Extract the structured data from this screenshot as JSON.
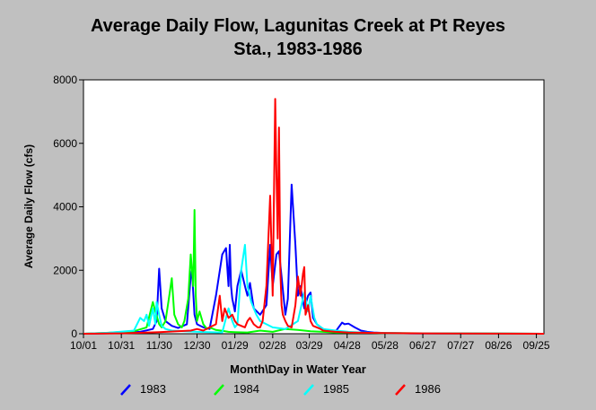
{
  "chart_data": {
    "type": "line",
    "title_line1": "Average Daily Flow, Lagunitas Creek at Pt Reyes",
    "title_line2": "Sta., 1983-1986",
    "xlabel": "Month\\Day in Water Year",
    "ylabel": "Average Daily Flow (cfs)",
    "ylim": [
      0,
      8000
    ],
    "xlim": [
      0,
      365
    ],
    "y_ticks": [
      "0",
      "2000",
      "4000",
      "6000",
      "8000"
    ],
    "x_ticks": [
      {
        "label": "10/01",
        "day": 0
      },
      {
        "label": "10/31",
        "day": 30
      },
      {
        "label": "11/30",
        "day": 60
      },
      {
        "label": "12/30",
        "day": 90
      },
      {
        "label": "01/29",
        "day": 120
      },
      {
        "label": "02/28",
        "day": 150
      },
      {
        "label": "03/29",
        "day": 179
      },
      {
        "label": "04/28",
        "day": 209
      },
      {
        "label": "05/28",
        "day": 239
      },
      {
        "label": "06/27",
        "day": 269
      },
      {
        "label": "07/27",
        "day": 299
      },
      {
        "label": "08/26",
        "day": 329
      },
      {
        "label": "09/25",
        "day": 359
      }
    ],
    "series": [
      {
        "name": "1983",
        "color": "#0000ff",
        "x": [
          0,
          30,
          45,
          55,
          58,
          60,
          62,
          65,
          70,
          75,
          82,
          85,
          86,
          88,
          90,
          95,
          100,
          105,
          110,
          113,
          115,
          116,
          117,
          118,
          119,
          120,
          122,
          125,
          128,
          130,
          132,
          135,
          140,
          145,
          148,
          150,
          153,
          155,
          157,
          160,
          162,
          165,
          168,
          170,
          172,
          175,
          178,
          180,
          182,
          185,
          190,
          195,
          200,
          205,
          207,
          210,
          215,
          220,
          225,
          230,
          240,
          260,
          300,
          365
        ],
        "y": [
          0,
          20,
          60,
          150,
          400,
          2050,
          800,
          400,
          250,
          180,
          300,
          1800,
          2000,
          600,
          300,
          200,
          150,
          1200,
          2500,
          2700,
          1500,
          2800,
          1500,
          1100,
          900,
          700,
          1500,
          2000,
          1500,
          1200,
          1600,
          800,
          600,
          900,
          2800,
          1500,
          2500,
          2600,
          1800,
          600,
          1100,
          4700,
          2800,
          1200,
          1500,
          800,
          1200,
          1300,
          500,
          300,
          150,
          100,
          80,
          350,
          300,
          320,
          200,
          100,
          60,
          40,
          20,
          10,
          5,
          0
        ]
      },
      {
        "name": "1984",
        "color": "#00ff00",
        "x": [
          0,
          20,
          40,
          50,
          55,
          57,
          60,
          62,
          65,
          68,
          70,
          72,
          75,
          78,
          80,
          83,
          85,
          87,
          88,
          89,
          90,
          92,
          95,
          98,
          100,
          105,
          110,
          115,
          120,
          130,
          140,
          150,
          160,
          170,
          180,
          190,
          200,
          220,
          240,
          270,
          300,
          330,
          365
        ],
        "y": [
          0,
          30,
          80,
          200,
          1000,
          700,
          300,
          200,
          400,
          1200,
          1750,
          600,
          300,
          200,
          400,
          1100,
          2500,
          1500,
          3900,
          1200,
          400,
          700,
          300,
          150,
          200,
          120,
          90,
          60,
          50,
          40,
          100,
          60,
          150,
          120,
          80,
          60,
          40,
          30,
          20,
          15,
          10,
          5,
          0
        ]
      },
      {
        "name": "1985",
        "color": "#00ffff",
        "x": [
          0,
          20,
          40,
          45,
          48,
          50,
          52,
          55,
          57,
          58,
          60,
          62,
          65,
          70,
          80,
          90,
          100,
          110,
          115,
          118,
          120,
          122,
          125,
          128,
          130,
          133,
          135,
          137,
          140,
          145,
          150,
          160,
          170,
          175,
          178,
          180,
          183,
          185,
          190,
          200,
          210,
          220,
          240,
          270,
          300,
          365
        ],
        "y": [
          0,
          30,
          100,
          500,
          400,
          600,
          250,
          800,
          300,
          1000,
          600,
          250,
          150,
          100,
          80,
          60,
          50,
          40,
          800,
          400,
          200,
          300,
          2000,
          2800,
          1500,
          1000,
          800,
          600,
          400,
          300,
          200,
          150,
          400,
          1300,
          700,
          1200,
          500,
          300,
          150,
          100,
          60,
          40,
          20,
          10,
          5,
          0
        ]
      },
      {
        "name": "1986",
        "color": "#ff0000",
        "x": [
          0,
          30,
          60,
          85,
          90,
          95,
          100,
          105,
          108,
          110,
          112,
          115,
          118,
          120,
          122,
          125,
          128,
          130,
          132,
          135,
          138,
          140,
          142,
          145,
          148,
          150,
          152,
          153,
          154,
          155,
          156,
          157,
          158,
          160,
          162,
          165,
          168,
          170,
          172,
          174,
          175,
          176,
          178,
          180,
          182,
          185,
          188,
          190,
          195,
          200,
          210,
          220,
          240,
          270,
          300,
          365
        ],
        "y": [
          0,
          10,
          50,
          100,
          150,
          100,
          200,
          300,
          1200,
          400,
          800,
          500,
          600,
          400,
          300,
          250,
          200,
          400,
          500,
          300,
          200,
          200,
          400,
          1500,
          4350,
          1200,
          7400,
          5000,
          3000,
          6500,
          2000,
          900,
          600,
          400,
          250,
          200,
          900,
          1800,
          1200,
          1900,
          2100,
          600,
          900,
          400,
          250,
          200,
          150,
          100,
          80,
          60,
          40,
          30,
          20,
          10,
          5,
          0
        ]
      }
    ]
  }
}
